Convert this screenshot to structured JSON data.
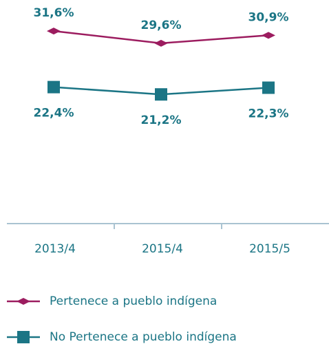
{
  "chart_data": {
    "type": "line",
    "categories": [
      "2013/4",
      "2015/4",
      "2015/5"
    ],
    "series": [
      {
        "name": "Pertenece a pueblo indígena",
        "color": "#9c1c5f",
        "marker": "diamond",
        "values": [
          31.6,
          29.6,
          30.9
        ],
        "value_labels": [
          "31,6%",
          "29,6%",
          "30,9%"
        ]
      },
      {
        "name": "No Pertenece a pueblo indígena",
        "color": "#1b7585",
        "marker": "square",
        "values": [
          22.4,
          21.2,
          22.3
        ],
        "value_labels": [
          "22,4%",
          "21,2%",
          "22,3%"
        ]
      }
    ],
    "ylim": [
      0,
      35
    ],
    "label_color": "#1b7585",
    "grid": false
  }
}
